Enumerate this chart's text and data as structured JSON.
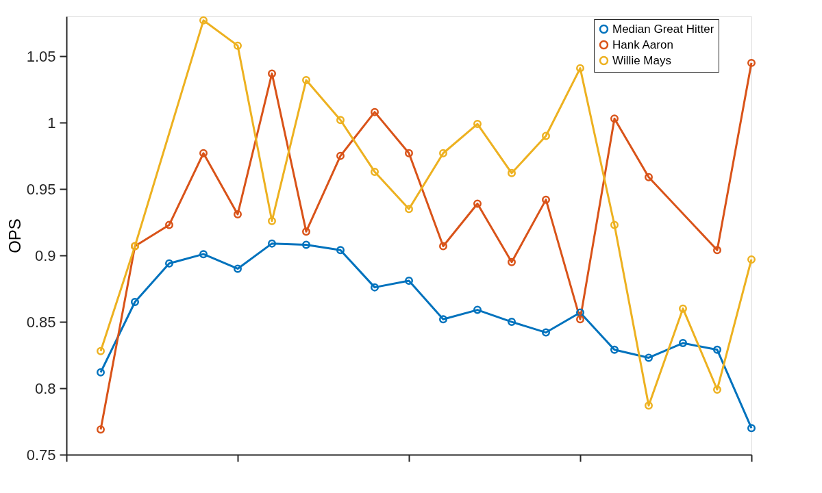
{
  "chart_data": {
    "type": "line",
    "ylabel": "OPS",
    "categories": [
      null,
      null,
      null,
      null,
      null,
      null,
      null,
      null,
      null,
      null,
      null,
      null,
      null,
      null,
      null,
      null,
      null,
      null,
      null,
      null
    ],
    "ylim": [
      0.75,
      1.08
    ],
    "yticks": [
      0.75,
      0.8,
      0.85,
      0.9,
      0.95,
      1,
      1.05
    ],
    "tick_labels": "y",
    "grid": false,
    "legend": "top right",
    "marker": "circle",
    "line_style": "solid",
    "series": [
      {
        "name": "Median Great Hitter",
        "color": "#0072bd",
        "values": [
          0.812,
          0.865,
          0.894,
          0.901,
          0.89,
          0.909,
          0.908,
          0.904,
          0.876,
          0.881,
          0.852,
          0.859,
          0.85,
          0.842,
          0.857,
          0.829,
          0.823,
          0.834,
          0.829,
          0.77
        ]
      },
      {
        "name": "Hank Aaron",
        "color": "#d95319",
        "values": [
          0.769,
          0.907,
          0.923,
          0.977,
          0.931,
          1.037,
          0.918,
          0.975,
          1.008,
          0.977,
          0.907,
          0.939,
          0.895,
          0.942,
          0.852,
          1.003,
          0.959,
          null,
          0.904,
          1.045
        ]
      },
      {
        "name": "Willie Mays",
        "color": "#edb120",
        "values": [
          0.828,
          0.907,
          null,
          1.077,
          1.058,
          0.926,
          1.032,
          1.002,
          0.963,
          0.935,
          0.977,
          0.999,
          0.962,
          0.99,
          1.041,
          0.923,
          0.787,
          0.86,
          0.799,
          0.897
        ]
      }
    ]
  }
}
